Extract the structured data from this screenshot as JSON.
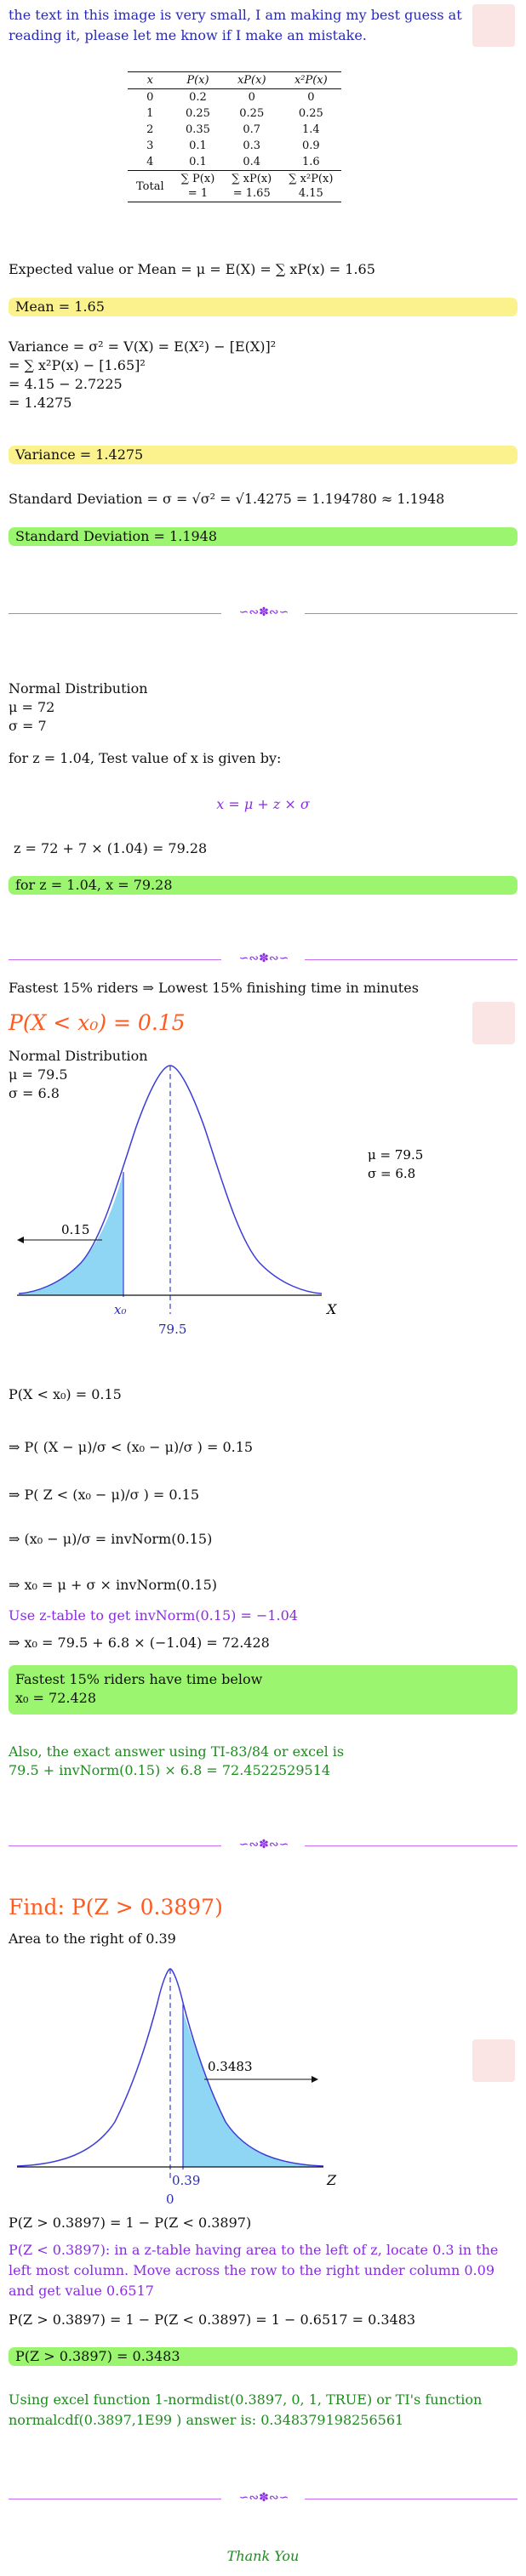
{
  "intro": "the text in this image is very small, I am making my best guess at reading it, please let me know if I make an mistake.",
  "table": {
    "headers": [
      "x",
      "P(x)",
      "xP(x)",
      "x²P(x)"
    ],
    "rows": [
      [
        "0",
        "0.2",
        "0",
        "0"
      ],
      [
        "1",
        "0.25",
        "0.25",
        "0.25"
      ],
      [
        "2",
        "0.35",
        "0.7",
        "1.4"
      ],
      [
        "3",
        "0.1",
        "0.3",
        "0.9"
      ],
      [
        "4",
        "0.1",
        "0.4",
        "1.6"
      ]
    ],
    "total_label": "Total",
    "total_formulas": [
      "∑ P(x)",
      "∑ xP(x)",
      "∑ x²P(x)"
    ],
    "total_values": [
      "= 1",
      "= 1.65",
      "4.15"
    ]
  },
  "mean": {
    "formula": "Expected value or Mean = μ = E(X) = ∑ xP(x) = 1.65",
    "result": "Mean = 1.65"
  },
  "variance": {
    "lines": [
      "Variance = σ² = V(X) = E(X²) − [E(X)]²",
      "= ∑ x²P(x) − [1.65]²",
      "= 4.15 − 2.7225",
      "= 1.4275"
    ],
    "result": "Variance = 1.4275"
  },
  "sd": {
    "formula": "Standard Deviation = σ = √σ² = √1.4275 = 1.194780 ≈ 1.1948",
    "result": "Standard Deviation = 1.1948"
  },
  "ornament": "∽∾✽∾∽",
  "normal1": {
    "title": "Normal Distribution",
    "mu": "μ = 72",
    "sigma": "σ = 7",
    "prompt": "for z = 1.04, Test value of x is given by:",
    "formula": "x = μ + z × σ",
    "calc": "z = 72 + 7 × (1.04) = 79.28",
    "result": "for z = 1.04, x = 79.28"
  },
  "section2": {
    "lead": "Fastest 15% riders  ⇒ Lowest 15% finishing time in minutes",
    "heading": "P(X < x₀) = 0.15",
    "dist_title": "Normal Distribution",
    "mu": "μ = 79.5",
    "sigma": "σ = 6.8",
    "graph": {
      "area_label": "0.15",
      "x0_label": "x₀",
      "mean_label": "79.5",
      "axis_label": "X",
      "mu_text": "μ = 79.5",
      "sigma_text": "σ = 6.8"
    },
    "steps": [
      "P(X < x₀) = 0.15",
      "⇒ P( (X − μ)/σ < (x₀ − μ)/σ ) = 0.15",
      "⇒ P( Z < (x₀ − μ)/σ ) = 0.15",
      "⇒ (x₀ − μ)/σ = invNorm(0.15)",
      "⇒ x₀ = μ + σ × invNorm(0.15)"
    ],
    "ztable_note": "Use z-table to get invNorm(0.15) = −1.04",
    "final_calc": "⇒ x₀ = 79.5 + 6.8 × (−1.04) = 72.428",
    "result_line1": "Fastest 15% riders have time below",
    "result_line2": "x₀ = 72.428",
    "exact_line1": "Also, the exact answer using TI-83/84 or excel is",
    "exact_line2": "79.5 + invNorm(0.15) × 6.8 = 72.4522529514"
  },
  "section3": {
    "heading": "Find: P(Z > 0.3897)",
    "area_text": "Area to the right of 0.39",
    "graph": {
      "area_label": "0.3483",
      "z_label": "0.39",
      "zero_label": "0",
      "axis_label": "Z"
    },
    "eq1": "P(Z > 0.3897) = 1 − P(Z < 0.3897)",
    "note": "P(Z < 0.3897): in a z-table having area to the left of z, locate 0.3 in the left most column. Move across the row to the right under column 0.09 and get value 0.6517",
    "eq2": "P(Z > 0.3897) = 1 − P(Z < 0.3897) = 1 − 0.6517 = 0.3483",
    "result": "P(Z > 0.3897) = 0.3483",
    "excel_line1": "Using excel function 1-normdist(0.3897, 0, 1, TRUE) or TI's function",
    "excel_line2": "normalcdf(0.3897,1E99 ) answer is: 0.348379198256561"
  },
  "thanks": "Thank You",
  "colors": {
    "yellow": "#fbf28e",
    "green": "#9cf56e",
    "purple": "#8a2be2",
    "orange": "#ff5a1f",
    "blue_text": "#2a2ab8",
    "curve": "#3b3bd9",
    "shade": "#8fd6f5"
  }
}
